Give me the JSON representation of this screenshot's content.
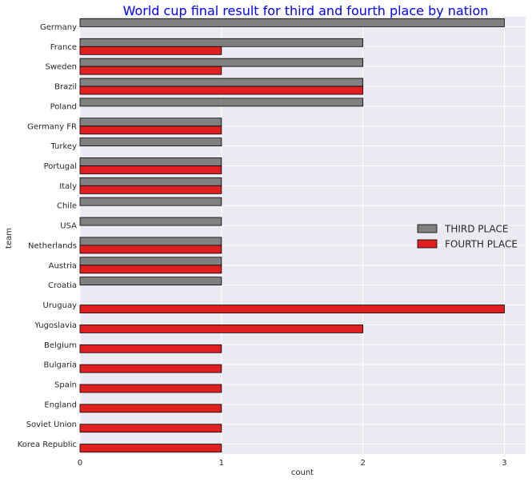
{
  "chart_data": {
    "type": "bar",
    "orientation": "horizontal",
    "title": "World cup final result for third and fourth place by nation",
    "xlabel": "count",
    "ylabel": "team",
    "xlim": [
      0,
      3.15
    ],
    "xticks": [
      0,
      1,
      2,
      3
    ],
    "grid": true,
    "legend_position": "right",
    "categories": [
      "Germany",
      "France",
      "Sweden",
      "Brazil",
      "Poland",
      "Germany FR",
      "Turkey",
      "Portugal",
      "Italy",
      "Chile",
      "USA",
      "Netherlands",
      "Austria",
      "Croatia",
      "Uruguay",
      "Yugoslavia",
      "Belgium",
      "Bulgaria",
      "Spain",
      "England",
      "Soviet Union",
      "Korea Republic"
    ],
    "series": [
      {
        "name": "THIRD PLACE",
        "color": "#808080",
        "values": [
          3,
          2,
          2,
          2,
          2,
          1,
          1,
          1,
          1,
          1,
          1,
          1,
          1,
          1,
          0,
          0,
          0,
          0,
          0,
          0,
          0,
          0
        ]
      },
      {
        "name": "FOURTH PLACE",
        "color": "#e02020",
        "values": [
          0,
          1,
          1,
          2,
          0,
          1,
          0,
          1,
          1,
          0,
          0,
          1,
          1,
          0,
          3,
          2,
          1,
          1,
          1,
          1,
          1,
          1
        ]
      }
    ]
  }
}
